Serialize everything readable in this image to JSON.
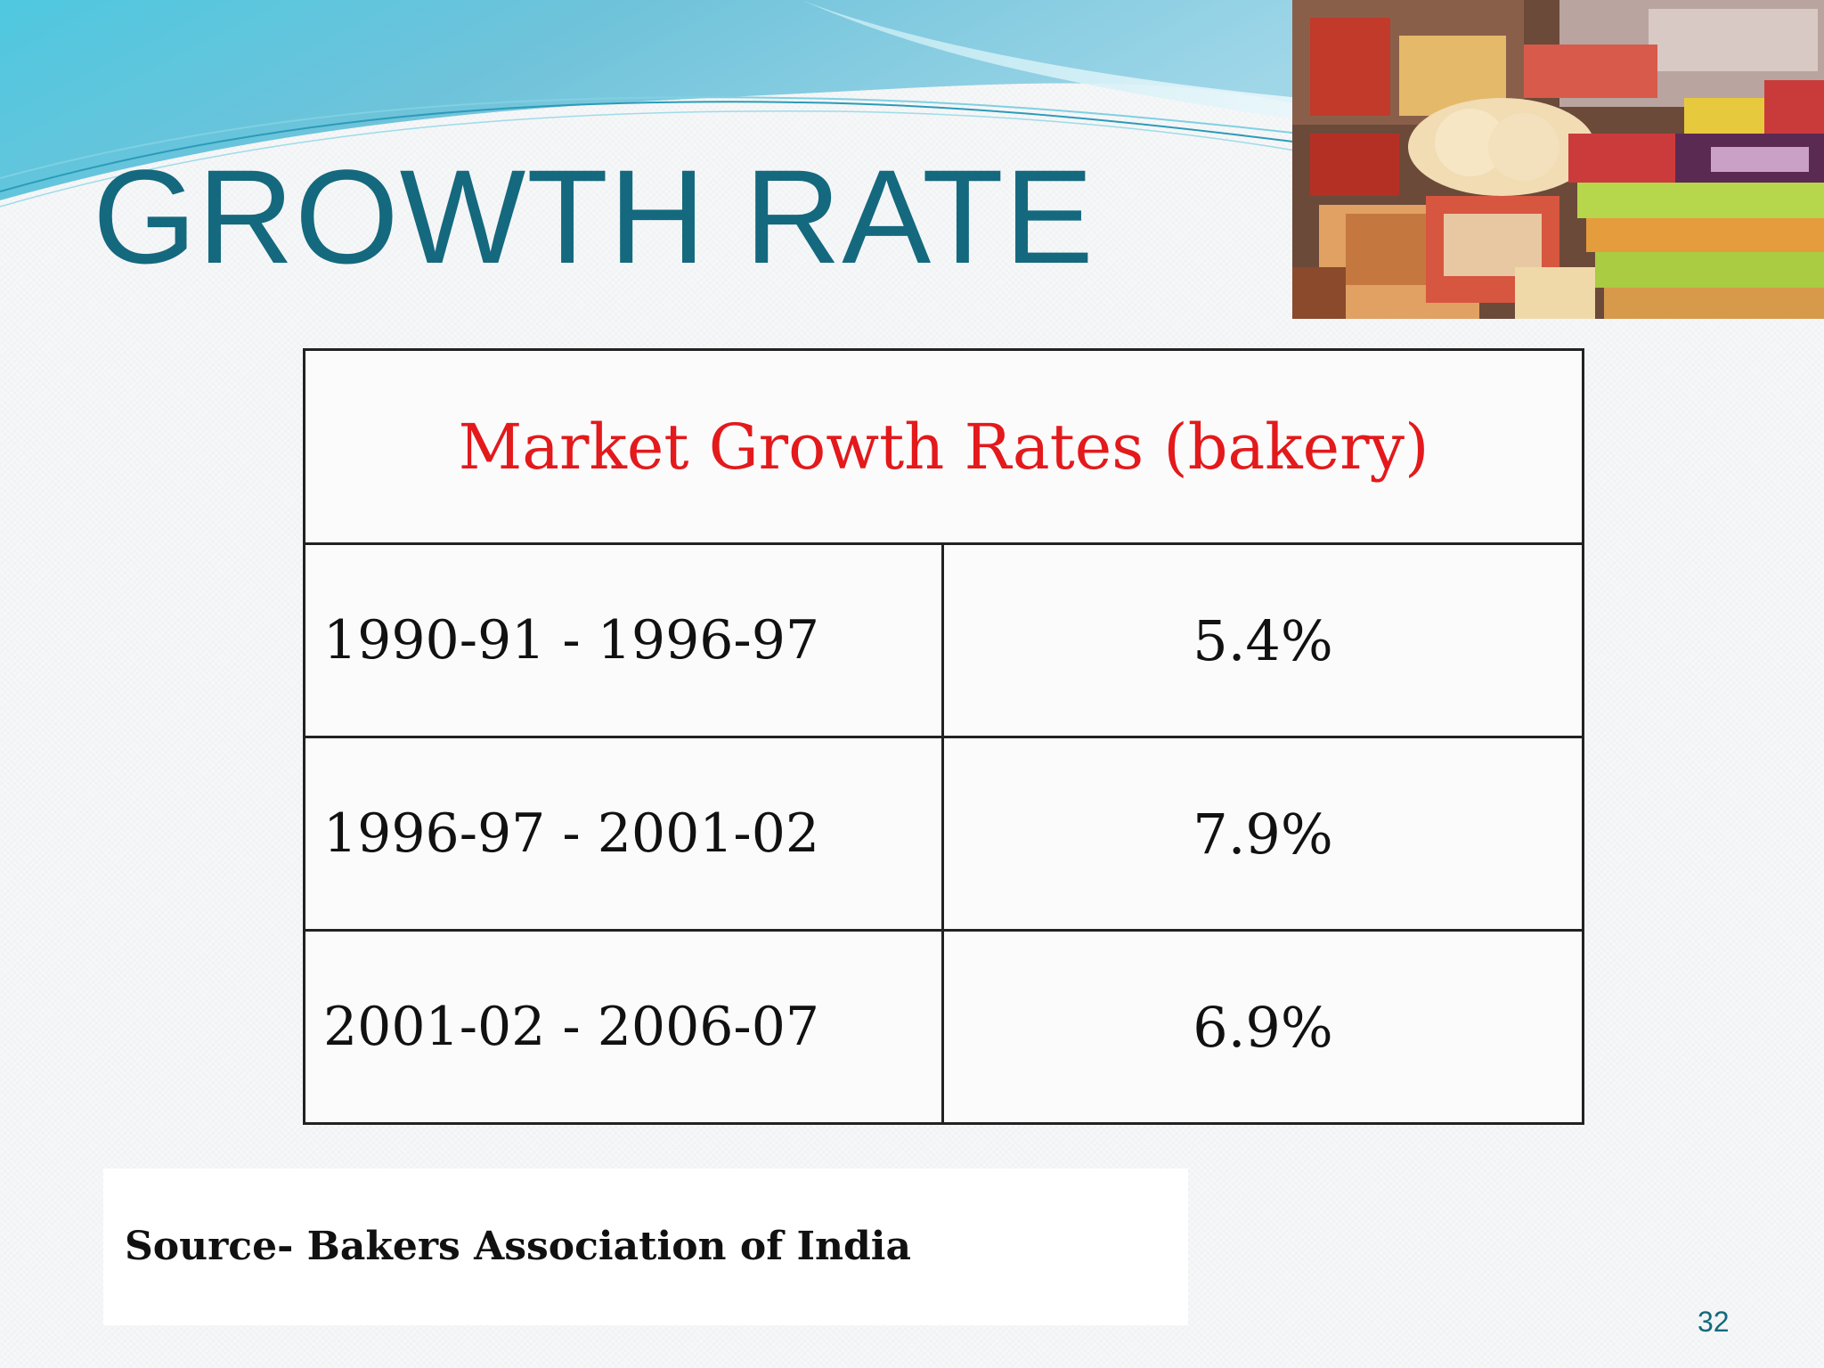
{
  "slide": {
    "title": "GROWTH RATE",
    "page_number": "32"
  },
  "table": {
    "heading": "Market Growth Rates (bakery)",
    "rows": [
      {
        "period": "1990-91 - 1996-97",
        "rate": "5.4%"
      },
      {
        "period": "1996-97 - 2001-02",
        "rate": "7.9%"
      },
      {
        "period": "2001-02 - 2006-07",
        "rate": "6.9%"
      }
    ]
  },
  "source": {
    "text": "Source- Bakers Association of India"
  },
  "colors": {
    "title": "#14697e",
    "table_heading": "#e3191b",
    "header_wave": "#5fc6dc"
  },
  "icons": {
    "photo": "bakery-products-photo"
  }
}
